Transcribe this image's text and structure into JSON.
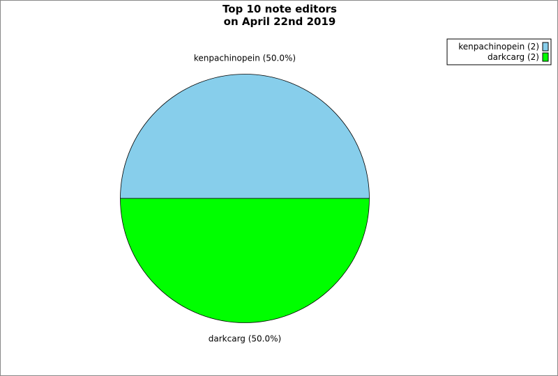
{
  "chart_data": {
    "type": "pie",
    "title": [
      "Top 10 note editors",
      "on April 22nd 2019"
    ],
    "slices": [
      {
        "label": "kenpachinopein",
        "value": 2,
        "percent_label": "kenpachinopein (50.0%)",
        "legend_label": "kenpachinopein (2)",
        "color": "#87CEEB"
      },
      {
        "label": "darkcarg",
        "value": 2,
        "percent_label": "darkcarg (50.0%)",
        "legend_label": "darkcarg (2)",
        "color": "#00FF00"
      }
    ],
    "legend_position": "top-right"
  }
}
